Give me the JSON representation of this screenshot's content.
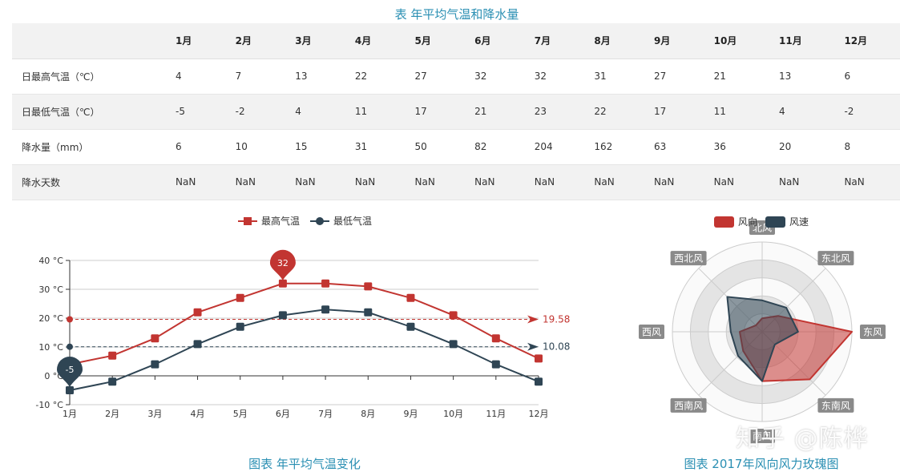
{
  "table": {
    "title": "表 年平均气温和降水量",
    "columns": [
      "1月",
      "2月",
      "3月",
      "4月",
      "5月",
      "6月",
      "7月",
      "8月",
      "9月",
      "10月",
      "11月",
      "12月"
    ],
    "rows": [
      {
        "label": "日最高气温（℃）",
        "values": [
          "4",
          "7",
          "13",
          "22",
          "27",
          "32",
          "32",
          "31",
          "27",
          "21",
          "13",
          "6"
        ]
      },
      {
        "label": "日最低气温（℃）",
        "values": [
          "-5",
          "-2",
          "4",
          "11",
          "17",
          "21",
          "23",
          "22",
          "17",
          "11",
          "4",
          "-2"
        ]
      },
      {
        "label": "降水量（mm）",
        "values": [
          "6",
          "10",
          "15",
          "31",
          "50",
          "82",
          "204",
          "162",
          "63",
          "36",
          "20",
          "8"
        ]
      },
      {
        "label": "降水天数",
        "values": [
          "NaN",
          "NaN",
          "NaN",
          "NaN",
          "NaN",
          "NaN",
          "NaN",
          "NaN",
          "NaN",
          "NaN",
          "NaN",
          "NaN"
        ]
      }
    ]
  },
  "chart_data": [
    {
      "type": "line",
      "title": "",
      "caption": "图表 年平均气温变化",
      "categories": [
        "1月",
        "2月",
        "3月",
        "4月",
        "5月",
        "6月",
        "7月",
        "8月",
        "9月",
        "10月",
        "11月",
        "12月"
      ],
      "series": [
        {
          "name": "最高气温",
          "color": "#c23531",
          "values": [
            4,
            7,
            13,
            22,
            27,
            32,
            32,
            31,
            27,
            21,
            13,
            6
          ],
          "markPoint": {
            "label": "32",
            "index": 5
          },
          "markLine": {
            "label": "19.58",
            "value": 19.58
          }
        },
        {
          "name": "最低气温",
          "color": "#2f4554",
          "values": [
            -5,
            -2,
            4,
            11,
            17,
            21,
            23,
            22,
            17,
            11,
            4,
            -2
          ],
          "markPoint": {
            "label": "-5",
            "index": 0
          },
          "markLine": {
            "label": "10.08",
            "value": 10.08
          }
        }
      ],
      "yticks": [
        "40 °C",
        "30 °C",
        "20 °C",
        "10 °C",
        "0 °C",
        "-10 °C"
      ],
      "ylim": [
        -10,
        40
      ],
      "grid": true,
      "legend": "top-center"
    },
    {
      "type": "radar",
      "title": "",
      "caption": "图表 2017年风向风力玫瑰图",
      "indicators": [
        "北风",
        "东北风",
        "东风",
        "东南风",
        "南风",
        "西南风",
        "西风",
        "西北风"
      ],
      "series": [
        {
          "name": "风向",
          "color": "#c23531",
          "values": [
            0.15,
            0.25,
            1.0,
            0.75,
            0.55,
            0.3,
            0.25,
            0.1
          ]
        },
        {
          "name": "风速",
          "color": "#2f4554",
          "values": [
            0.35,
            0.38,
            0.4,
            0.2,
            0.55,
            0.38,
            0.35,
            0.55
          ]
        }
      ],
      "legend": "top-center"
    }
  ],
  "watermark": "知乎 @陈桦"
}
